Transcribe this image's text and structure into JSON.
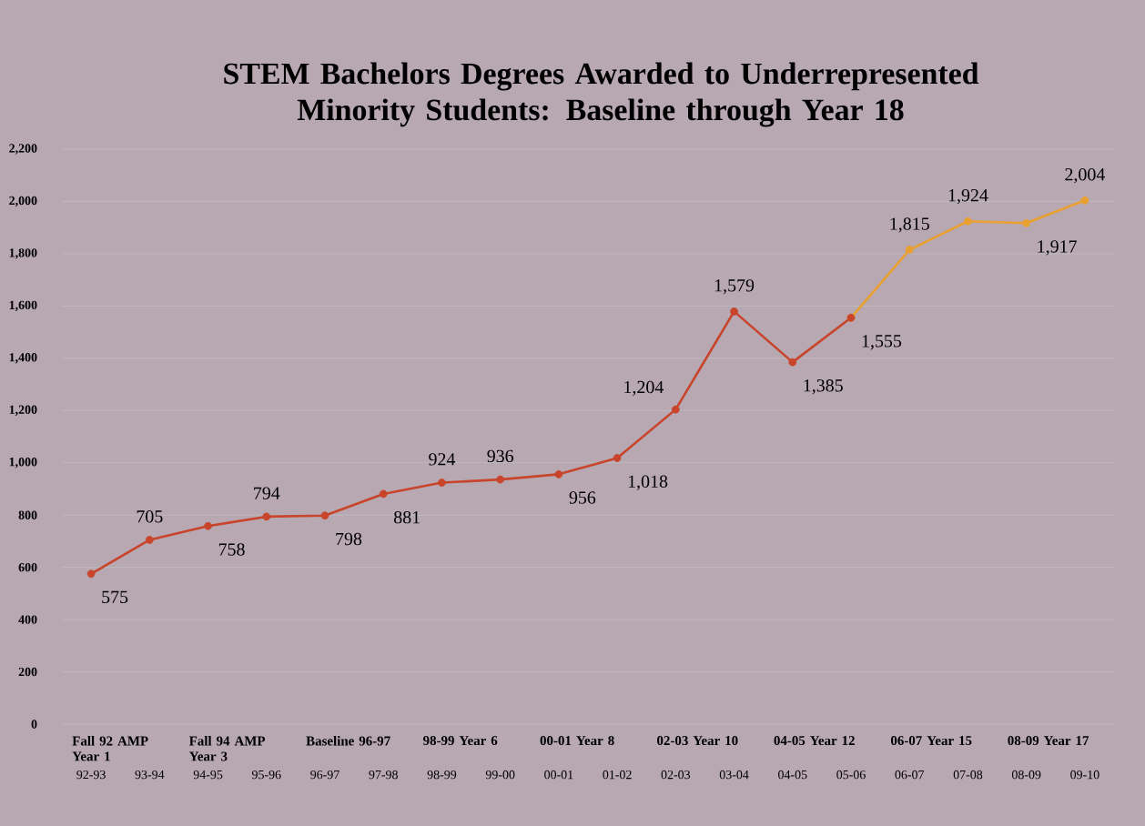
{
  "chart_data": {
    "type": "line",
    "title": "STEM Bachelors Degrees Awarded to Underrepresented Minority Students: Baseline through Year 18",
    "categories": [
      "92-93",
      "93-94",
      "94-95",
      "95-96",
      "96-97",
      "97-98",
      "98-99",
      "99-00",
      "00-01",
      "01-02",
      "02-03",
      "03-04",
      "04-05",
      "05-06",
      "06-07",
      "07-08",
      "08-09",
      "09-10"
    ],
    "series": [
      {
        "color": "#e8a030",
        "values": [
          null,
          null,
          null,
          null,
          null,
          null,
          null,
          null,
          null,
          null,
          null,
          null,
          null,
          1555,
          1815,
          1924,
          1917,
          2004
        ],
        "value_labels": [
          null,
          null,
          null,
          null,
          null,
          null,
          null,
          null,
          null,
          null,
          null,
          null,
          null,
          null,
          "1,815",
          "1,924",
          "1,917",
          "2,004"
        ]
      },
      {
        "color": "#c8442a",
        "values": [
          575,
          705,
          758,
          794,
          798,
          881,
          924,
          936,
          956,
          1018,
          1204,
          1579,
          1385,
          1555,
          null,
          null,
          null,
          null
        ],
        "value_labels": [
          "575",
          "705",
          "758",
          "794",
          "798",
          "881",
          "924",
          "936",
          "956",
          "1,018",
          "1,204",
          "1,579",
          "1,385",
          "1,555",
          null,
          null,
          null,
          null
        ]
      }
    ],
    "ylim": [
      0,
      2200
    ],
    "yticks": [
      0,
      200,
      400,
      600,
      800,
      {
        "value": 1000,
        "label": "1,000"
      },
      {
        "value": 1200,
        "label": "1,200"
      },
      {
        "value": 1400,
        "label": "1,400"
      },
      {
        "value": 1600,
        "label": "1,600"
      },
      {
        "value": 1800,
        "label": "1,800"
      },
      {
        "value": 2000,
        "label": "2,000"
      },
      {
        "value": 2200,
        "label": "2,200"
      }
    ],
    "grid": "y",
    "marker": "circle",
    "line_style": "solid",
    "annotations": [
      "Fall 92 AMP Year 1",
      "Fall 94 AMP Year 3",
      "Baseline 96-97",
      "98-99 Year 6",
      "00-01 Year 8",
      "02-03 Year 10",
      "04-05 Year 12",
      "06-07 Year 15",
      "08-09 Year 17"
    ]
  }
}
